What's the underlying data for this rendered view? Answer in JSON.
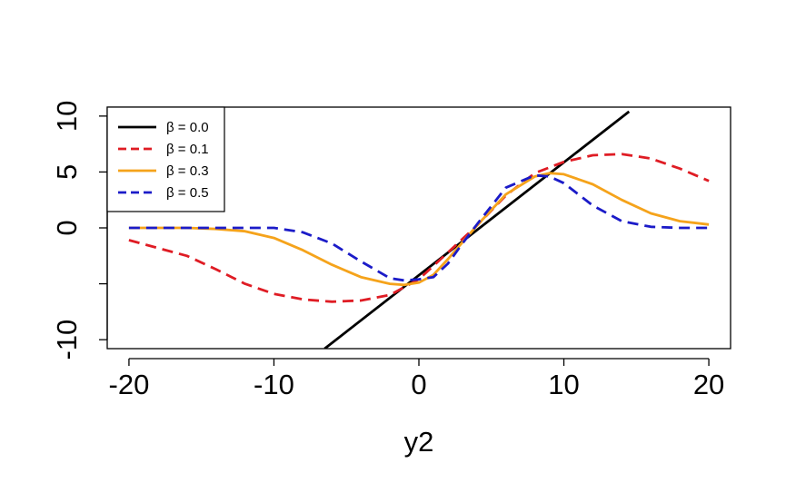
{
  "chart_data": {
    "type": "line",
    "title": "",
    "xlabel": "y2",
    "ylabel": "",
    "xlim": [
      -21.5,
      21.5
    ],
    "ylim": [
      -10.8,
      10.8
    ],
    "x_ticks": [
      -20,
      -10,
      0,
      10,
      20
    ],
    "x_tick_labels": [
      "-20",
      "-10",
      "0",
      "10",
      "20"
    ],
    "y_ticks": [
      -10,
      0,
      5,
      10
    ],
    "y_tick_labels": [
      "-10",
      "0",
      "5",
      "10"
    ],
    "y_minor_ticks": [
      -5
    ],
    "grid": false,
    "legend_position": "top-left",
    "series": [
      {
        "name": "β = 0.0",
        "color": "#000000",
        "style": "solid",
        "x": [
          -6.5,
          14.5
        ],
        "y": [
          -10.8,
          10.4
        ]
      },
      {
        "name": "β = 0.1",
        "color": "#DF1C24",
        "style": "dashed",
        "x": [
          -20,
          -18,
          -16,
          -14,
          -12,
          -10,
          -8,
          -6,
          -4,
          -2,
          0,
          2,
          4,
          6,
          8,
          10,
          12,
          14,
          16,
          18,
          20
        ],
        "y": [
          -1.1,
          -1.8,
          -2.5,
          -3.7,
          -5.0,
          -5.9,
          -6.4,
          -6.6,
          -6.5,
          -6.0,
          -4.6,
          -2.2,
          0.2,
          2.9,
          4.9,
          5.9,
          6.5,
          6.6,
          6.2,
          5.3,
          4.2
        ]
      },
      {
        "name": "β = 0.3",
        "color": "#F5A31B",
        "style": "solid",
        "x": [
          -20,
          -18,
          -16,
          -14,
          -12,
          -10,
          -8,
          -6,
          -4,
          -2,
          -1,
          0,
          1,
          2,
          4,
          6,
          8,
          9,
          10,
          12,
          14,
          16,
          18,
          20
        ],
        "y": [
          0.0,
          0.0,
          0.0,
          -0.1,
          -0.3,
          -0.9,
          -2.0,
          -3.3,
          -4.4,
          -5.0,
          -5.1,
          -4.9,
          -4.2,
          -2.8,
          0.2,
          3.0,
          4.6,
          4.9,
          4.8,
          3.9,
          2.5,
          1.3,
          0.6,
          0.3
        ]
      },
      {
        "name": "β = 0.5",
        "color": "#1B1BC8",
        "style": "dashed",
        "x": [
          -20,
          -16,
          -12,
          -10,
          -8,
          -6,
          -4,
          -2,
          -1,
          0,
          1,
          2,
          3,
          4,
          6,
          8,
          9,
          10,
          12,
          14,
          16,
          18,
          20
        ],
        "y": [
          0.0,
          0.0,
          0.0,
          0.0,
          -0.4,
          -1.4,
          -3.0,
          -4.5,
          -4.7,
          -4.6,
          -4.4,
          -3.2,
          -1.4,
          0.3,
          3.6,
          4.7,
          4.6,
          4.0,
          2.0,
          0.6,
          0.1,
          0.0,
          0.0
        ]
      }
    ]
  }
}
